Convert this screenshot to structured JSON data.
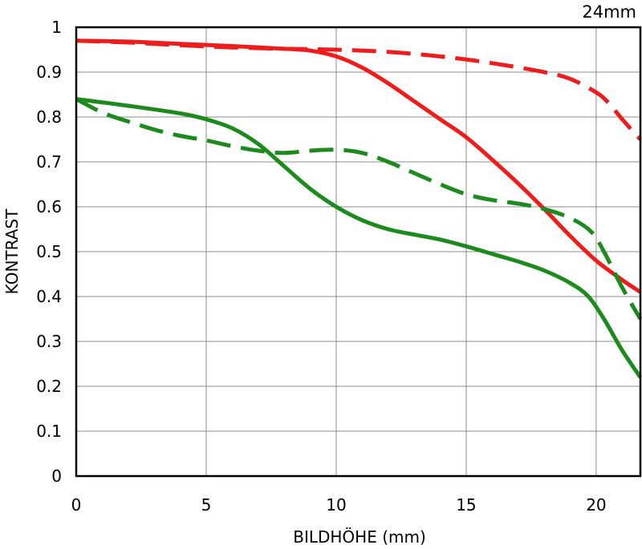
{
  "chart_data": {
    "type": "line",
    "title": "",
    "corner_label": "24mm",
    "xlabel": "BILDHÖHE (mm)",
    "ylabel": "KONTRAST",
    "xlim": [
      0,
      21.7
    ],
    "ylim": [
      0,
      1
    ],
    "grid": true,
    "x_ticks": [
      "0",
      "5",
      "10",
      "15",
      "20"
    ],
    "y_ticks": [
      "0",
      "0.1",
      "0.2",
      "0.3",
      "0.4",
      "0.5",
      "0.6",
      "0.7",
      "0.8",
      "0.9",
      "1"
    ],
    "series": [
      {
        "color": "#ee1c1c",
        "style": "solid",
        "x": [
          0,
          2,
          4,
          6,
          8,
          9,
          10,
          11,
          12,
          13,
          14,
          15,
          16,
          17,
          18,
          19,
          20,
          21,
          21.7
        ],
        "y": [
          0.97,
          0.968,
          0.963,
          0.958,
          0.952,
          0.948,
          0.935,
          0.91,
          0.875,
          0.835,
          0.795,
          0.755,
          0.705,
          0.652,
          0.595,
          0.535,
          0.48,
          0.437,
          0.41
        ]
      },
      {
        "color": "#ee1c1c",
        "style": "dashed",
        "x": [
          0,
          2,
          4,
          6,
          8,
          10,
          12,
          14,
          16,
          18,
          19,
          20,
          20.5,
          21,
          21.7
        ],
        "y": [
          0.97,
          0.966,
          0.96,
          0.955,
          0.952,
          0.95,
          0.945,
          0.935,
          0.92,
          0.9,
          0.885,
          0.855,
          0.83,
          0.795,
          0.75
        ]
      },
      {
        "color": "#1c8a1c",
        "style": "solid",
        "x": [
          0,
          2,
          4,
          5,
          6,
          7,
          8,
          9,
          10,
          11,
          12,
          13,
          14,
          15,
          16,
          17,
          18,
          19,
          19.7,
          20.3,
          21,
          21.7
        ],
        "y": [
          0.84,
          0.825,
          0.808,
          0.795,
          0.775,
          0.74,
          0.69,
          0.64,
          0.6,
          0.57,
          0.55,
          0.538,
          0.527,
          0.512,
          0.495,
          0.478,
          0.458,
          0.43,
          0.4,
          0.35,
          0.28,
          0.22
        ]
      },
      {
        "color": "#1c8a1c",
        "style": "dashed",
        "x": [
          0,
          1,
          2,
          3,
          4,
          5,
          6,
          7,
          8,
          9,
          10,
          11,
          12,
          13,
          14,
          15,
          16,
          17,
          18,
          19,
          19.8,
          20.3,
          21,
          21.7
        ],
        "y": [
          0.84,
          0.81,
          0.79,
          0.772,
          0.758,
          0.748,
          0.735,
          0.725,
          0.72,
          0.725,
          0.727,
          0.72,
          0.7,
          0.675,
          0.65,
          0.628,
          0.615,
          0.607,
          0.595,
          0.575,
          0.545,
          0.5,
          0.42,
          0.35
        ]
      }
    ]
  }
}
